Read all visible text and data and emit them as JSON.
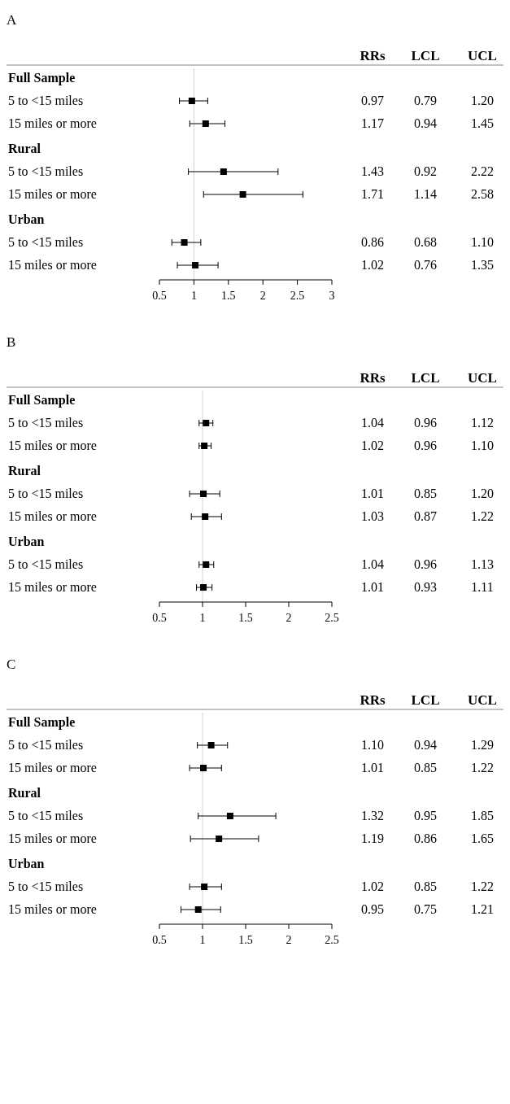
{
  "chart_data": [
    {
      "type": "scatter",
      "title": "A",
      "orientation": "horizontal",
      "categories": [
        "Full Sample",
        "5 to <15 miles",
        "15 miles or more",
        "Rural",
        "5 to <15 miles",
        "15 miles or more",
        "Urban",
        "5 to <15 miles",
        "15 miles or more"
      ],
      "series": [
        {
          "color": "#000000",
          "values": [
            null,
            0.97,
            1.17,
            null,
            1.43,
            1.71,
            null,
            0.86,
            1.02
          ],
          "value_labels": [
            null,
            "0.97",
            "1.17",
            null,
            "1.43",
            "1.71",
            null,
            "0.86",
            "1.02"
          ],
          "errors": [
            null,
            [
              0.79,
              1.2
            ],
            [
              0.94,
              1.45
            ],
            null,
            [
              0.92,
              2.22
            ],
            [
              1.14,
              2.58
            ],
            null,
            [
              0.68,
              1.1
            ],
            [
              0.76,
              1.35
            ]
          ]
        }
      ],
      "xlim": [
        0.5,
        3
      ],
      "xticks": [
        0.5,
        1,
        1.5,
        2,
        2.5,
        3
      ],
      "marker": "square",
      "grid": false,
      "annotations": [
        "RRs",
        "LCL",
        "UCL",
        "0.79",
        "1.20",
        "0.94",
        "1.45",
        "0.92",
        "2.22",
        "1.14",
        "2.58",
        "0.68",
        "1.10",
        "0.76",
        "1.35"
      ],
      "ref_lines": [
        {
          "axis": "x",
          "value": 1,
          "color": "#d0d0d0"
        }
      ]
    },
    {
      "type": "scatter",
      "title": "B",
      "orientation": "horizontal",
      "categories": [
        "Full Sample",
        "5 to <15 miles",
        "15 miles or more",
        "Rural",
        "5 to <15 miles",
        "15 miles or more",
        "Urban",
        "5 to <15 miles",
        "15 miles or more"
      ],
      "series": [
        {
          "color": "#000000",
          "values": [
            null,
            1.04,
            1.02,
            null,
            1.01,
            1.03,
            null,
            1.04,
            1.01
          ],
          "value_labels": [
            null,
            "1.04",
            "1.02",
            null,
            "1.01",
            "1.03",
            null,
            "1.04",
            "1.01"
          ],
          "errors": [
            null,
            [
              0.96,
              1.12
            ],
            [
              0.96,
              1.1
            ],
            null,
            [
              0.85,
              1.2
            ],
            [
              0.87,
              1.22
            ],
            null,
            [
              0.96,
              1.13
            ],
            [
              0.93,
              1.11
            ]
          ]
        }
      ],
      "xlim": [
        0.5,
        2.5
      ],
      "xticks": [
        0.5,
        1,
        1.5,
        2,
        2.5
      ],
      "marker": "square",
      "grid": false,
      "annotations": [
        "RRs",
        "LCL",
        "UCL",
        "0.96",
        "1.12",
        "0.96",
        "1.10",
        "0.85",
        "1.20",
        "0.87",
        "1.22",
        "0.96",
        "1.13",
        "0.93",
        "1.11"
      ],
      "ref_lines": [
        {
          "axis": "x",
          "value": 1,
          "color": "#d0d0d0"
        }
      ]
    },
    {
      "type": "scatter",
      "title": "C",
      "orientation": "horizontal",
      "categories": [
        "Full Sample",
        "5 to <15 miles",
        "15 miles or more",
        "Rural",
        "5 to <15 miles",
        "15 miles or more",
        "Urban",
        "5 to <15 miles",
        "15 miles or more"
      ],
      "series": [
        {
          "color": "#000000",
          "values": [
            null,
            1.1,
            1.01,
            null,
            1.32,
            1.19,
            null,
            1.02,
            0.95
          ],
          "value_labels": [
            null,
            "1.10",
            "1.01",
            null,
            "1.32",
            "1.19",
            null,
            "1.02",
            "0.95"
          ],
          "errors": [
            null,
            [
              0.94,
              1.29
            ],
            [
              0.85,
              1.22
            ],
            null,
            [
              0.95,
              1.85
            ],
            [
              0.86,
              1.65
            ],
            null,
            [
              0.85,
              1.22
            ],
            [
              0.75,
              1.21
            ]
          ]
        }
      ],
      "xlim": [
        0.5,
        2.5
      ],
      "xticks": [
        0.5,
        1,
        1.5,
        2,
        2.5
      ],
      "marker": "square",
      "grid": false,
      "annotations": [
        "RRs",
        "LCL",
        "UCL",
        "0.94",
        "1.29",
        "0.85",
        "1.22",
        "0.95",
        "1.85",
        "0.86",
        "1.65",
        "0.85",
        "1.22",
        "0.75",
        "1.21"
      ],
      "ref_lines": [
        {
          "axis": "x",
          "value": 1,
          "color": "#d0d0d0"
        }
      ]
    }
  ]
}
